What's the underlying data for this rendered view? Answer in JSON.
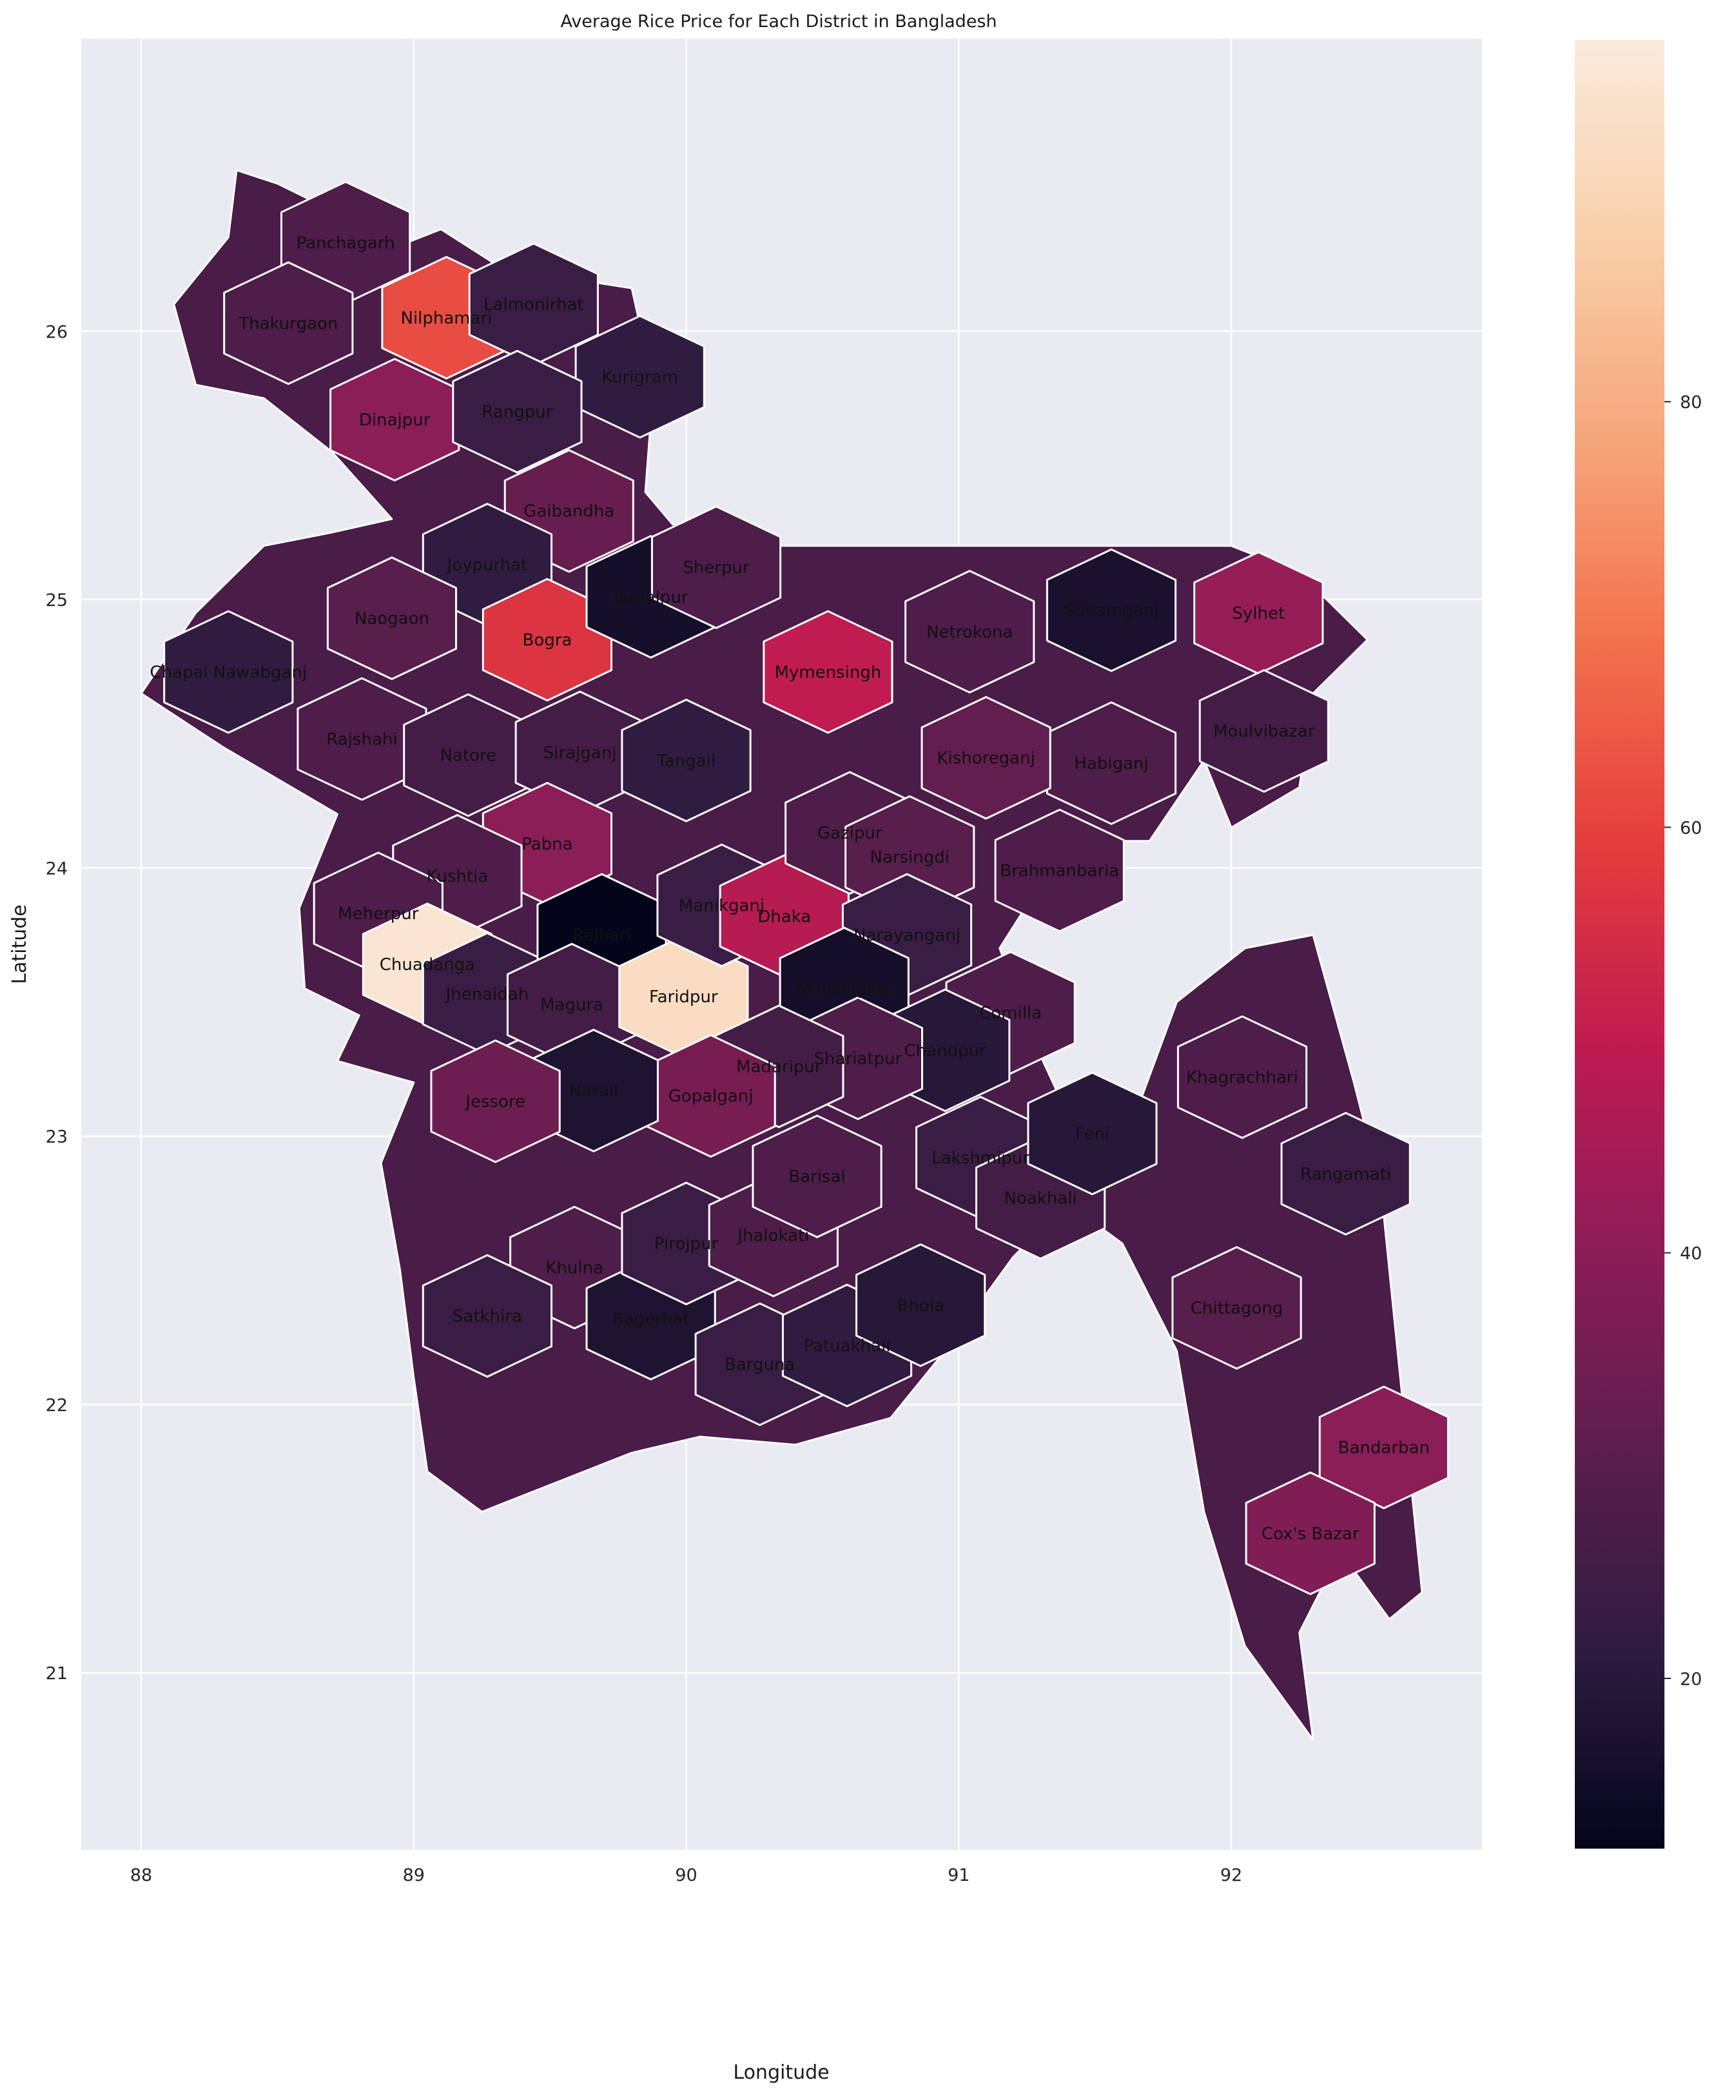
{
  "chart_data": {
    "type": "choropleth-map",
    "title": "Average Rice Price for Each District in Bangladesh",
    "xlabel": "Longitude",
    "ylabel": "Latitude",
    "xlim": [
      87.78,
      92.92
    ],
    "ylim": [
      20.34,
      27.09
    ],
    "x_ticks": [
      88,
      89,
      90,
      91,
      92
    ],
    "y_ticks": [
      21,
      22,
      23,
      24,
      25,
      26
    ],
    "grid": true,
    "colorbar": {
      "min": 12,
      "max": 97,
      "ticks": [
        20,
        40,
        60,
        80
      ],
      "colormap": [
        "#03051a",
        "#2e1c40",
        "#5c1e4d",
        "#8d1d57",
        "#bf1b51",
        "#e43d3d",
        "#f2714d",
        "#f6a57b",
        "#f8cfa9",
        "#faebdd"
      ]
    },
    "districts": [
      {
        "name": "Panchagarh",
        "lon": 88.75,
        "lat": 26.33,
        "value": 28
      },
      {
        "name": "Thakurgaon",
        "lon": 88.54,
        "lat": 26.03,
        "value": 28
      },
      {
        "name": "Nilphamari",
        "lon": 89.12,
        "lat": 26.05,
        "value": 62
      },
      {
        "name": "Lalmonirhat",
        "lon": 89.44,
        "lat": 26.1,
        "value": 24
      },
      {
        "name": "Kurigram",
        "lon": 89.83,
        "lat": 25.83,
        "value": 22
      },
      {
        "name": "Dinajpur",
        "lon": 88.93,
        "lat": 25.67,
        "value": 40
      },
      {
        "name": "Rangpur",
        "lon": 89.38,
        "lat": 25.7,
        "value": 24
      },
      {
        "name": "Gaibandha",
        "lon": 89.57,
        "lat": 25.33,
        "value": 33
      },
      {
        "name": "Joypurhat",
        "lon": 89.27,
        "lat": 25.13,
        "value": 22
      },
      {
        "name": "Naogaon",
        "lon": 88.92,
        "lat": 24.93,
        "value": 30
      },
      {
        "name": "Bogra",
        "lon": 89.49,
        "lat": 24.85,
        "value": 57
      },
      {
        "name": "Chapai Nawabganj",
        "lon": 88.32,
        "lat": 24.73,
        "value": 22
      },
      {
        "name": "Rajshahi",
        "lon": 88.81,
        "lat": 24.48,
        "value": 28
      },
      {
        "name": "Natore",
        "lon": 89.2,
        "lat": 24.42,
        "value": 26
      },
      {
        "name": "Sirajganj",
        "lon": 89.61,
        "lat": 24.43,
        "value": 26
      },
      {
        "name": "Jamalpur",
        "lon": 89.87,
        "lat": 25.01,
        "value": 16
      },
      {
        "name": "Sherpur",
        "lon": 90.11,
        "lat": 25.12,
        "value": 28
      },
      {
        "name": "Mymensingh",
        "lon": 90.52,
        "lat": 24.73,
        "value": 50
      },
      {
        "name": "Tangail",
        "lon": 90.0,
        "lat": 24.4,
        "value": 22
      },
      {
        "name": "Netrokona",
        "lon": 91.04,
        "lat": 24.88,
        "value": 28
      },
      {
        "name": "Sunamganj",
        "lon": 91.56,
        "lat": 24.96,
        "value": 17
      },
      {
        "name": "Sylhet",
        "lon": 92.1,
        "lat": 24.95,
        "value": 42
      },
      {
        "name": "Moulvibazar",
        "lon": 92.12,
        "lat": 24.51,
        "value": 26
      },
      {
        "name": "Habiganj",
        "lon": 91.56,
        "lat": 24.39,
        "value": 28
      },
      {
        "name": "Kishoreganj",
        "lon": 91.1,
        "lat": 24.41,
        "value": 32
      },
      {
        "name": "Pabna",
        "lon": 89.49,
        "lat": 24.09,
        "value": 40
      },
      {
        "name": "Kushtia",
        "lon": 89.16,
        "lat": 23.97,
        "value": 28
      },
      {
        "name": "Meherpur",
        "lon": 88.87,
        "lat": 23.83,
        "value": 28
      },
      {
        "name": "Chuadanga",
        "lon": 89.05,
        "lat": 23.64,
        "value": 95
      },
      {
        "name": "Jhenaidah",
        "lon": 89.27,
        "lat": 23.53,
        "value": 24
      },
      {
        "name": "Rajbari",
        "lon": 89.69,
        "lat": 23.75,
        "value": 12
      },
      {
        "name": "Magura",
        "lon": 89.58,
        "lat": 23.49,
        "value": 26
      },
      {
        "name": "Faridpur",
        "lon": 89.99,
        "lat": 23.52,
        "value": 92
      },
      {
        "name": "Manikganj",
        "lon": 90.13,
        "lat": 23.86,
        "value": 24
      },
      {
        "name": "Dhaka",
        "lon": 90.36,
        "lat": 23.82,
        "value": 48
      },
      {
        "name": "Gazipur",
        "lon": 90.6,
        "lat": 24.13,
        "value": 28
      },
      {
        "name": "Narsingdi",
        "lon": 90.82,
        "lat": 24.04,
        "value": 30
      },
      {
        "name": "Brahmanbaria",
        "lon": 91.37,
        "lat": 23.99,
        "value": 28
      },
      {
        "name": "Narayanganj",
        "lon": 90.81,
        "lat": 23.75,
        "value": 24
      },
      {
        "name": "Munshiganj",
        "lon": 90.58,
        "lat": 23.55,
        "value": 16
      },
      {
        "name": "Comilla",
        "lon": 91.19,
        "lat": 23.46,
        "value": 28
      },
      {
        "name": "Chandpur",
        "lon": 90.95,
        "lat": 23.32,
        "value": 20
      },
      {
        "name": "Shariatpur",
        "lon": 90.63,
        "lat": 23.29,
        "value": 28
      },
      {
        "name": "Madaripur",
        "lon": 90.34,
        "lat": 23.26,
        "value": 26
      },
      {
        "name": "Gopalganj",
        "lon": 90.09,
        "lat": 23.15,
        "value": 36
      },
      {
        "name": "Narail",
        "lon": 89.66,
        "lat": 23.17,
        "value": 18
      },
      {
        "name": "Jessore",
        "lon": 89.3,
        "lat": 23.13,
        "value": 34
      },
      {
        "name": "Khulna",
        "lon": 89.59,
        "lat": 22.51,
        "value": 28
      },
      {
        "name": "Satkhira",
        "lon": 89.27,
        "lat": 22.33,
        "value": 24
      },
      {
        "name": "Bagerhat",
        "lon": 89.87,
        "lat": 22.32,
        "value": 18
      },
      {
        "name": "Pirojpur",
        "lon": 90.0,
        "lat": 22.6,
        "value": 24
      },
      {
        "name": "Jhalokati",
        "lon": 90.32,
        "lat": 22.63,
        "value": 28
      },
      {
        "name": "Barisal",
        "lon": 90.48,
        "lat": 22.85,
        "value": 28
      },
      {
        "name": "Barguna",
        "lon": 90.27,
        "lat": 22.15,
        "value": 24
      },
      {
        "name": "Patuakhali",
        "lon": 90.59,
        "lat": 22.22,
        "value": 22
      },
      {
        "name": "Bhola",
        "lon": 90.86,
        "lat": 22.37,
        "value": 20
      },
      {
        "name": "Lakshmipur",
        "lon": 91.08,
        "lat": 22.92,
        "value": 24
      },
      {
        "name": "Noakhali",
        "lon": 91.3,
        "lat": 22.77,
        "value": 26
      },
      {
        "name": "Feni",
        "lon": 91.49,
        "lat": 23.01,
        "value": 20
      },
      {
        "name": "Khagrachhari",
        "lon": 92.04,
        "lat": 23.22,
        "value": 28
      },
      {
        "name": "Rangamati",
        "lon": 92.42,
        "lat": 22.86,
        "value": 24
      },
      {
        "name": "Chittagong",
        "lon": 92.02,
        "lat": 22.36,
        "value": 30
      },
      {
        "name": "Bandarban",
        "lon": 92.56,
        "lat": 21.84,
        "value": 40
      },
      {
        "name": "Cox's Bazar",
        "lon": 92.29,
        "lat": 21.52,
        "value": 38
      }
    ]
  }
}
